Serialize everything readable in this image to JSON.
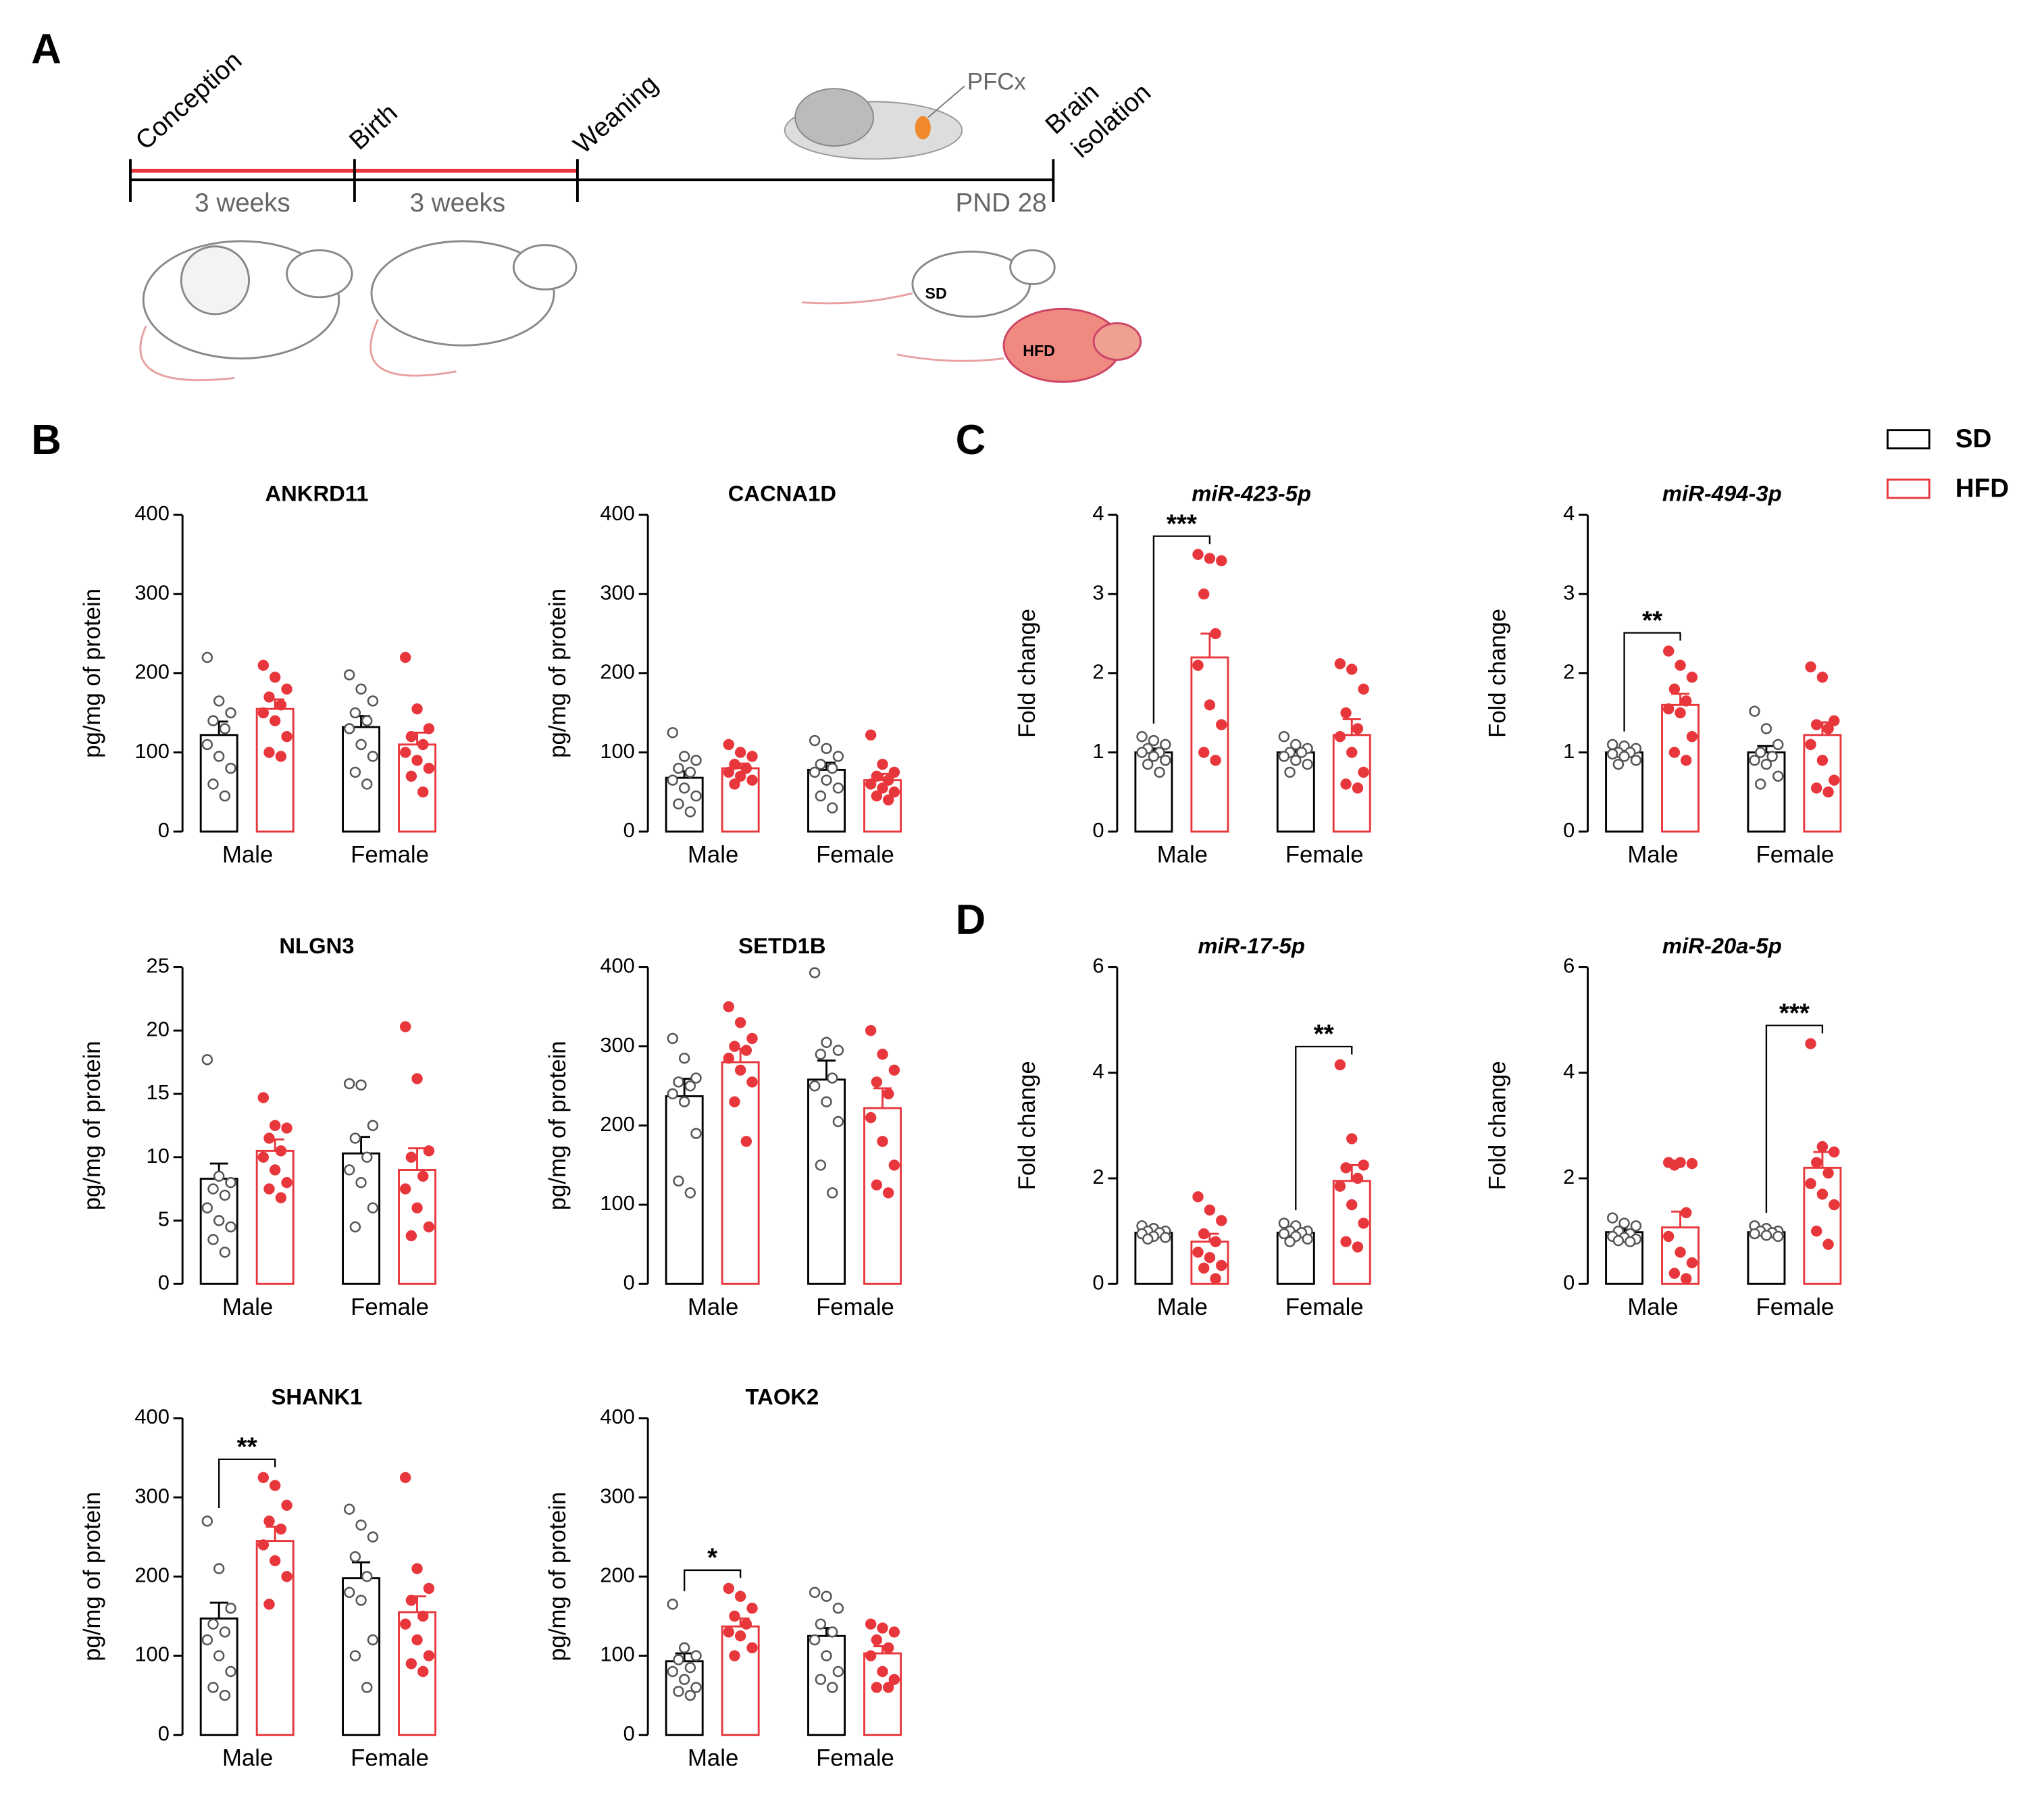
{
  "panel_labels": [
    "A",
    "B",
    "C",
    "D"
  ],
  "panel_a": {
    "events": [
      "Conception",
      "Birth",
      "Weaning"
    ],
    "end_event": [
      "Brain",
      "isolation"
    ],
    "periods": [
      "3 weeks",
      "3 weeks",
      "PND 28"
    ],
    "region": "PFCx",
    "mouse_labels": [
      "SD",
      "HFD"
    ]
  },
  "chart_data": [
    {
      "type": "bar",
      "title": "ANKRD11",
      "ylabel": "pg/mg of protein",
      "categories": [
        "Male",
        "Female"
      ],
      "ylim": [
        0,
        400
      ],
      "yticks": [
        0,
        100,
        200,
        300,
        400
      ],
      "significance": [
        null,
        null
      ],
      "series": [
        {
          "name": "SD",
          "color": "#000000",
          "values": [
            122,
            132
          ],
          "errors": [
            17,
            14
          ],
          "points": [
            [
              220,
              165,
              150,
              140,
              130,
              110,
              95,
              80,
              60,
              45
            ],
            [
              198,
              180,
              165,
              150,
              140,
              130,
              110,
              95,
              75,
              60
            ]
          ]
        },
        {
          "name": "HFD",
          "color": "#e8373c",
          "values": [
            155,
            110
          ],
          "errors": [
            12,
            15
          ],
          "points": [
            [
              210,
              195,
              180,
              170,
              160,
              150,
              140,
              120,
              100,
              95
            ],
            [
              220,
              155,
              130,
              120,
              110,
              100,
              90,
              80,
              70,
              50
            ]
          ]
        }
      ]
    },
    {
      "type": "bar",
      "title": "CACNA1D",
      "ylabel": "pg/mg of protein",
      "categories": [
        "Male",
        "Female"
      ],
      "ylim": [
        0,
        400
      ],
      "yticks": [
        0,
        100,
        200,
        300,
        400
      ],
      "significance": [
        null,
        null
      ],
      "series": [
        {
          "name": "SD",
          "color": "#000000",
          "values": [
            68,
            78
          ],
          "errors": [
            8,
            9
          ],
          "points": [
            [
              125,
              95,
              90,
              80,
              75,
              65,
              55,
              45,
              35,
              25
            ],
            [
              115,
              105,
              95,
              85,
              80,
              75,
              65,
              55,
              45,
              30
            ]
          ]
        },
        {
          "name": "HFD",
          "color": "#e8373c",
          "values": [
            80,
            65
          ],
          "errors": [
            6,
            8
          ],
          "points": [
            [
              110,
              100,
              95,
              85,
              80,
              75,
              70,
              65,
              60
            ],
            [
              122,
              85,
              75,
              70,
              65,
              60,
              55,
              50,
              45,
              40
            ]
          ]
        }
      ]
    },
    {
      "type": "bar",
      "title": "NLGN3",
      "ylabel": "pg/mg of protein",
      "categories": [
        "Male",
        "Female"
      ],
      "ylim": [
        0,
        25
      ],
      "yticks": [
        0,
        5,
        10,
        15,
        20,
        25
      ],
      "significance": [
        null,
        null
      ],
      "series": [
        {
          "name": "SD",
          "color": "#000000",
          "values": [
            8.3,
            10.3
          ],
          "errors": [
            1.2,
            1.3
          ],
          "points": [
            [
              17.7,
              8.5,
              8.0,
              7.5,
              7.0,
              6.0,
              5.0,
              4.5,
              3.5,
              2.5
            ],
            [
              15.8,
              15.7,
              12.5,
              11.5,
              10,
              9,
              8,
              6,
              4.5
            ]
          ]
        },
        {
          "name": "HFD",
          "color": "#e8373c",
          "values": [
            10.5,
            9.0
          ],
          "errors": [
            0.9,
            1.7
          ],
          "points": [
            [
              14.7,
              12.5,
              12.3,
              11.5,
              10.5,
              10,
              9,
              8,
              7.5,
              6.8
            ],
            [
              20.3,
              16.2,
              10.5,
              10.0,
              8.5,
              7.5,
              6,
              4.5,
              3.8
            ]
          ]
        }
      ]
    },
    {
      "type": "bar",
      "title": "SETD1B",
      "ylabel": "pg/mg of protein",
      "categories": [
        "Male",
        "Female"
      ],
      "ylim": [
        0,
        400
      ],
      "yticks": [
        0,
        100,
        200,
        300,
        400
      ],
      "significance": [
        null,
        null
      ],
      "series": [
        {
          "name": "SD",
          "color": "#000000",
          "values": [
            237,
            258
          ],
          "errors": [
            22,
            24
          ],
          "points": [
            [
              310,
              285,
              260,
              255,
              250,
              240,
              230,
              190,
              130,
              115
            ],
            [
              393,
              305,
              295,
              290,
              260,
              250,
              230,
              205,
              150,
              115
            ]
          ]
        },
        {
          "name": "HFD",
          "color": "#e8373c",
          "values": [
            280,
            222
          ],
          "errors": [
            17,
            25
          ],
          "points": [
            [
              350,
              330,
              310,
              300,
              295,
              285,
              270,
              255,
              230,
              180
            ],
            [
              320,
              290,
              270,
              255,
              240,
              210,
              180,
              150,
              125,
              115
            ]
          ]
        }
      ]
    },
    {
      "type": "bar",
      "title": "SHANK1",
      "ylabel": "pg/mg of protein",
      "categories": [
        "Male",
        "Female"
      ],
      "ylim": [
        0,
        400
      ],
      "yticks": [
        0,
        100,
        200,
        300,
        400
      ],
      "significance": [
        "**",
        null
      ],
      "series": [
        {
          "name": "SD",
          "color": "#000000",
          "values": [
            147,
            198
          ],
          "errors": [
            20,
            20
          ],
          "points": [
            [
              270,
              210,
              160,
              140,
              130,
              120,
              100,
              80,
              60,
              50
            ],
            [
              285,
              265,
              250,
              225,
              200,
              180,
              170,
              120,
              100,
              60
            ]
          ]
        },
        {
          "name": "HFD",
          "color": "#e8373c",
          "values": [
            245,
            155
          ],
          "errors": [
            18,
            20
          ],
          "points": [
            [
              325,
              315,
              290,
              270,
              260,
              240,
              220,
              200,
              165
            ],
            [
              325,
              210,
              185,
              170,
              150,
              140,
              120,
              100,
              90,
              80
            ]
          ]
        }
      ]
    },
    {
      "type": "bar",
      "title": "TAOK2",
      "ylabel": "pg/mg of protein",
      "categories": [
        "Male",
        "Female"
      ],
      "ylim": [
        0,
        400
      ],
      "yticks": [
        0,
        100,
        200,
        300,
        400
      ],
      "significance": [
        "*",
        null
      ],
      "series": [
        {
          "name": "SD",
          "color": "#000000",
          "values": [
            93,
            125
          ],
          "errors": [
            10,
            10
          ],
          "points": [
            [
              165,
              110,
              100,
              95,
              85,
              80,
              70,
              60,
              55,
              50
            ],
            [
              180,
              175,
              160,
              140,
              130,
              120,
              100,
              80,
              70,
              60
            ]
          ]
        },
        {
          "name": "HFD",
          "color": "#e8373c",
          "values": [
            137,
            103
          ],
          "errors": [
            10,
            9
          ],
          "points": [
            [
              185,
              175,
              160,
              150,
              140,
              130,
              125,
              110,
              100
            ],
            [
              140,
              135,
              130,
              120,
              110,
              100,
              80,
              70,
              60,
              60
            ]
          ]
        }
      ]
    },
    {
      "type": "bar",
      "title": "miR-423-5p",
      "italic_title": true,
      "ylabel": "Fold change",
      "categories": [
        "Male",
        "Female"
      ],
      "ylim": [
        0,
        4
      ],
      "yticks": [
        0,
        1,
        2,
        3,
        4
      ],
      "significance": [
        "***",
        null
      ],
      "series": [
        {
          "name": "SD",
          "color": "#000000",
          "values": [
            1.0,
            1.0
          ],
          "errors": [
            0.05,
            0.05
          ],
          "points": [
            [
              1.2,
              1.15,
              1.1,
              1.05,
              1.0,
              1.0,
              0.95,
              0.9,
              0.85,
              0.75
            ],
            [
              1.2,
              1.1,
              1.05,
              1.0,
              1.0,
              0.95,
              0.9,
              0.85,
              0.75
            ]
          ]
        },
        {
          "name": "HFD",
          "color": "#e8373c",
          "values": [
            2.2,
            1.22
          ],
          "errors": [
            0.3,
            0.2
          ],
          "points": [
            [
              3.5,
              3.45,
              3.42,
              3.0,
              2.5,
              2.1,
              1.6,
              1.35,
              1.0,
              0.9
            ],
            [
              2.12,
              2.05,
              1.8,
              1.5,
              1.3,
              1.2,
              1.0,
              0.75,
              0.6,
              0.55
            ]
          ]
        }
      ]
    },
    {
      "type": "bar",
      "title": "miR-494-3p",
      "italic_title": true,
      "ylabel": "Fold change",
      "categories": [
        "Male",
        "Female"
      ],
      "ylim": [
        0,
        4
      ],
      "yticks": [
        0,
        1,
        2,
        3,
        4
      ],
      "significance": [
        "**",
        null
      ],
      "series": [
        {
          "name": "SD",
          "color": "#000000",
          "values": [
            1.0,
            1.0
          ],
          "errors": [
            0.04,
            0.08
          ],
          "points": [
            [
              1.1,
              1.08,
              1.05,
              1.0,
              1.0,
              0.98,
              0.95,
              0.9,
              0.85
            ],
            [
              1.52,
              1.3,
              1.1,
              1.0,
              0.95,
              0.9,
              0.85,
              0.7,
              0.6
            ]
          ]
        },
        {
          "name": "HFD",
          "color": "#e8373c",
          "values": [
            1.6,
            1.22
          ],
          "errors": [
            0.14,
            0.16
          ],
          "points": [
            [
              2.28,
              2.1,
              1.95,
              1.8,
              1.65,
              1.55,
              1.5,
              1.2,
              1.0,
              0.9
            ],
            [
              2.08,
              1.95,
              1.4,
              1.35,
              1.3,
              1.1,
              0.9,
              0.65,
              0.55,
              0.5
            ]
          ]
        }
      ]
    },
    {
      "type": "bar",
      "title": "miR-17-5p",
      "italic_title": true,
      "ylabel": "Fold change",
      "categories": [
        "Male",
        "Female"
      ],
      "ylim": [
        0,
        6
      ],
      "yticks": [
        0,
        2,
        4,
        6
      ],
      "significance": [
        null,
        "**"
      ],
      "series": [
        {
          "name": "SD",
          "color": "#000000",
          "values": [
            0.97,
            0.97
          ],
          "errors": [
            0.05,
            0.04
          ],
          "points": [
            [
              1.1,
              1.05,
              1.0,
              1.0,
              0.97,
              0.95,
              0.9,
              0.88,
              0.85
            ],
            [
              1.15,
              1.1,
              1.0,
              1.0,
              0.97,
              0.95,
              0.9,
              0.85,
              0.8
            ]
          ]
        },
        {
          "name": "HFD",
          "color": "#e8373c",
          "values": [
            0.8,
            1.95
          ],
          "errors": [
            0.15,
            0.3
          ],
          "points": [
            [
              1.65,
              1.4,
              1.2,
              0.95,
              0.8,
              0.6,
              0.5,
              0.35,
              0.3,
              0.1
            ],
            [
              4.15,
              2.75,
              2.25,
              2.2,
              2.0,
              1.85,
              1.5,
              1.15,
              0.8,
              0.7
            ]
          ]
        }
      ]
    },
    {
      "type": "bar",
      "title": "miR-20a-5p",
      "italic_title": true,
      "ylabel": "Fold change",
      "categories": [
        "Male",
        "Female"
      ],
      "ylim": [
        0,
        6
      ],
      "yticks": [
        0,
        2,
        4,
        6
      ],
      "significance": [
        null,
        "***"
      ],
      "series": [
        {
          "name": "SD",
          "color": "#000000",
          "values": [
            0.98,
            0.98
          ],
          "errors": [
            0.05,
            0.04
          ],
          "points": [
            [
              1.25,
              1.15,
              1.1,
              1.0,
              0.95,
              0.9,
              0.88,
              0.85,
              0.82,
              0.8
            ],
            [
              1.1,
              1.05,
              1.0,
              1.0,
              0.97,
              0.95,
              0.92,
              0.9
            ]
          ]
        },
        {
          "name": "HFD",
          "color": "#e8373c",
          "values": [
            1.07,
            2.2
          ],
          "errors": [
            0.3,
            0.3
          ],
          "points": [
            [
              2.3,
              2.3,
              2.28,
              2.25,
              1.35,
              0.9,
              0.6,
              0.4,
              0.2,
              0.1
            ],
            [
              4.55,
              2.6,
              2.5,
              2.3,
              2.1,
              1.9,
              1.7,
              1.5,
              1.0,
              0.75
            ]
          ]
        }
      ]
    }
  ]
}
